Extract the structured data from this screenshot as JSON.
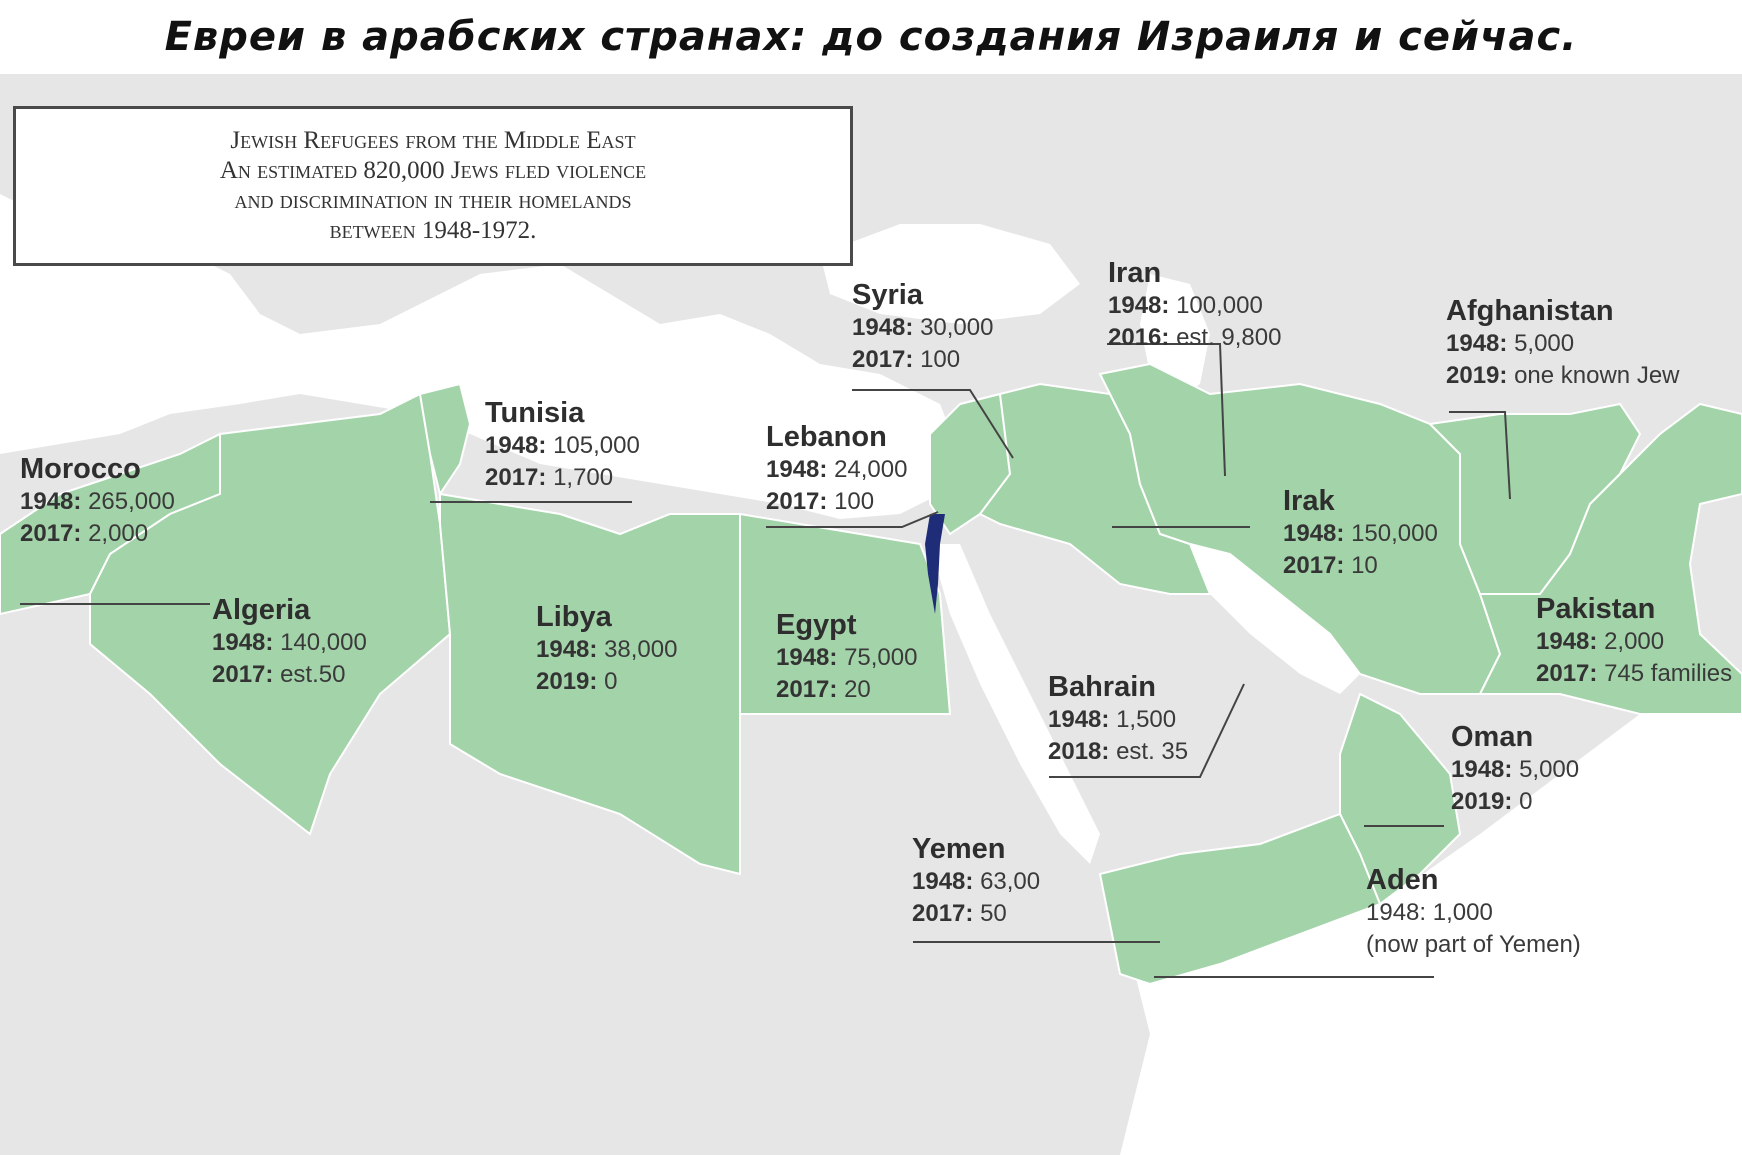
{
  "title": "Евреи в арабских странах: до создания Израиля и сейчас.",
  "info_box": {
    "lines": [
      "Jewish Refugees from the Middle East",
      "An estimated 820,000 Jews fled violence",
      "and discrimination in their homelands",
      "between 1948-1972."
    ]
  },
  "colors": {
    "highlight": "#a3d3a9",
    "highlight_stroke": "#ffffff",
    "israel": "#1f2d78",
    "land": "#e9e9e9",
    "sea": "#ffffff",
    "leader": "#444444"
  },
  "countries": [
    {
      "id": "morocco",
      "name": "Morocco",
      "rows": [
        {
          "k": "1948:",
          "v": "265,000"
        },
        {
          "k": "2017:",
          "v": "2,000"
        }
      ]
    },
    {
      "id": "tunisia",
      "name": "Tunisia",
      "rows": [
        {
          "k": "1948:",
          "v": "105,000"
        },
        {
          "k": "2017:",
          "v": "1,700"
        }
      ]
    },
    {
      "id": "algeria",
      "name": "Algeria",
      "rows": [
        {
          "k": "1948:",
          "v": "140,000"
        },
        {
          "k": "2017:",
          "v": "est.50"
        }
      ]
    },
    {
      "id": "libya",
      "name": "Libya",
      "rows": [
        {
          "k": "1948:",
          "v": "38,000"
        },
        {
          "k": "2019:",
          "v": "0"
        }
      ]
    },
    {
      "id": "egypt",
      "name": "Egypt",
      "rows": [
        {
          "k": "1948:",
          "v": "75,000"
        },
        {
          "k": "2017:",
          "v": "20"
        }
      ]
    },
    {
      "id": "lebanon",
      "name": "Lebanon",
      "rows": [
        {
          "k": "1948:",
          "v": "24,000"
        },
        {
          "k": "2017:",
          "v": "100"
        }
      ]
    },
    {
      "id": "syria",
      "name": "Syria",
      "rows": [
        {
          "k": "1948:",
          "v": "30,000"
        },
        {
          "k": "2017:",
          "v": "100"
        }
      ]
    },
    {
      "id": "iran",
      "name": "Iran",
      "rows": [
        {
          "k": "1948:",
          "v": "100,000"
        },
        {
          "k": "2016:",
          "v": "est. 9,800"
        }
      ]
    },
    {
      "id": "irak",
      "name": "Irak",
      "rows": [
        {
          "k": "1948:",
          "v": "150,000"
        },
        {
          "k": "2017:",
          "v": "10"
        }
      ]
    },
    {
      "id": "afghanistan",
      "name": "Afghanistan",
      "rows": [
        {
          "k": "1948:",
          "v": "5,000"
        },
        {
          "k": "2019:",
          "v": "one known Jew"
        }
      ]
    },
    {
      "id": "pakistan",
      "name": "Pakistan",
      "rows": [
        {
          "k": "1948:",
          "v": "2,000"
        },
        {
          "k": "2017:",
          "v": "745 families"
        }
      ]
    },
    {
      "id": "bahrain",
      "name": "Bahrain",
      "rows": [
        {
          "k": "1948:",
          "v": "1,500"
        },
        {
          "k": "2018:",
          "v": "est. 35"
        }
      ]
    },
    {
      "id": "oman",
      "name": "Oman",
      "rows": [
        {
          "k": "1948:",
          "v": "5,000"
        },
        {
          "k": "2019:",
          "v": "0"
        }
      ]
    },
    {
      "id": "yemen",
      "name": "Yemen",
      "rows": [
        {
          "k": "1948:",
          "v": "63,00"
        },
        {
          "k": "2017:",
          "v": "50"
        }
      ]
    },
    {
      "id": "aden",
      "name": "Aden",
      "rows": [
        {
          "k": "",
          "v": "1948: 1,000"
        },
        {
          "k": "",
          "v": "(now part of Yemen)"
        }
      ]
    }
  ]
}
